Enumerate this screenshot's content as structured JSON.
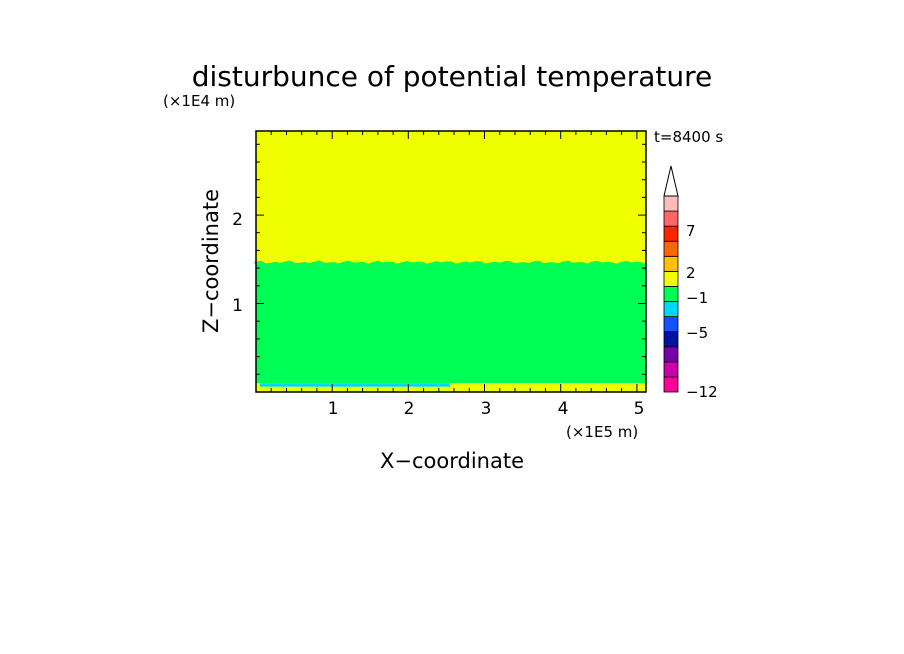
{
  "chart_data": {
    "type": "heatmap",
    "title": "disturbunce of potential temperature",
    "time_label": "t=8400 s",
    "xlabel": "X−coordinate",
    "ylabel": "Z−coordinate",
    "x_scale_label": "(×1E5 m)",
    "y_scale_label": "(×1E4 m)",
    "x_ticks": [
      "1",
      "2",
      "3",
      "4",
      "5"
    ],
    "y_ticks": [
      "1",
      "2"
    ],
    "xlim": [
      0,
      5.12
    ],
    "ylim": [
      0,
      2.95
    ],
    "grid": false,
    "colorbar": {
      "placement": "right",
      "tick_labels": [
        "7",
        "2",
        "−1",
        "−5",
        "−12"
      ],
      "colors": [
        "#ff0099",
        "#cc00aa",
        "#7700aa",
        "#00139e",
        "#1153ff",
        "#00d7ff",
        "#00ff55",
        "#f0ff00",
        "#ffc000",
        "#ff6600",
        "#ff2400",
        "#ff6666",
        "#ffbbbb"
      ],
      "extend": "max"
    },
    "regions": [
      {
        "name": "upper",
        "z_range": [
          1.45,
          2.95
        ],
        "color": "#f0ff00"
      },
      {
        "name": "middle",
        "z_range": [
          0.1,
          1.45
        ],
        "color": "#00ff55"
      },
      {
        "name": "surface",
        "z_range": [
          0,
          0.1
        ],
        "color": "#f0ff00"
      },
      {
        "name": "cold-pool",
        "x_range": [
          0.05,
          2.55
        ],
        "z_range": [
          0.06,
          0.1
        ],
        "color": "#00d7ff"
      }
    ]
  }
}
